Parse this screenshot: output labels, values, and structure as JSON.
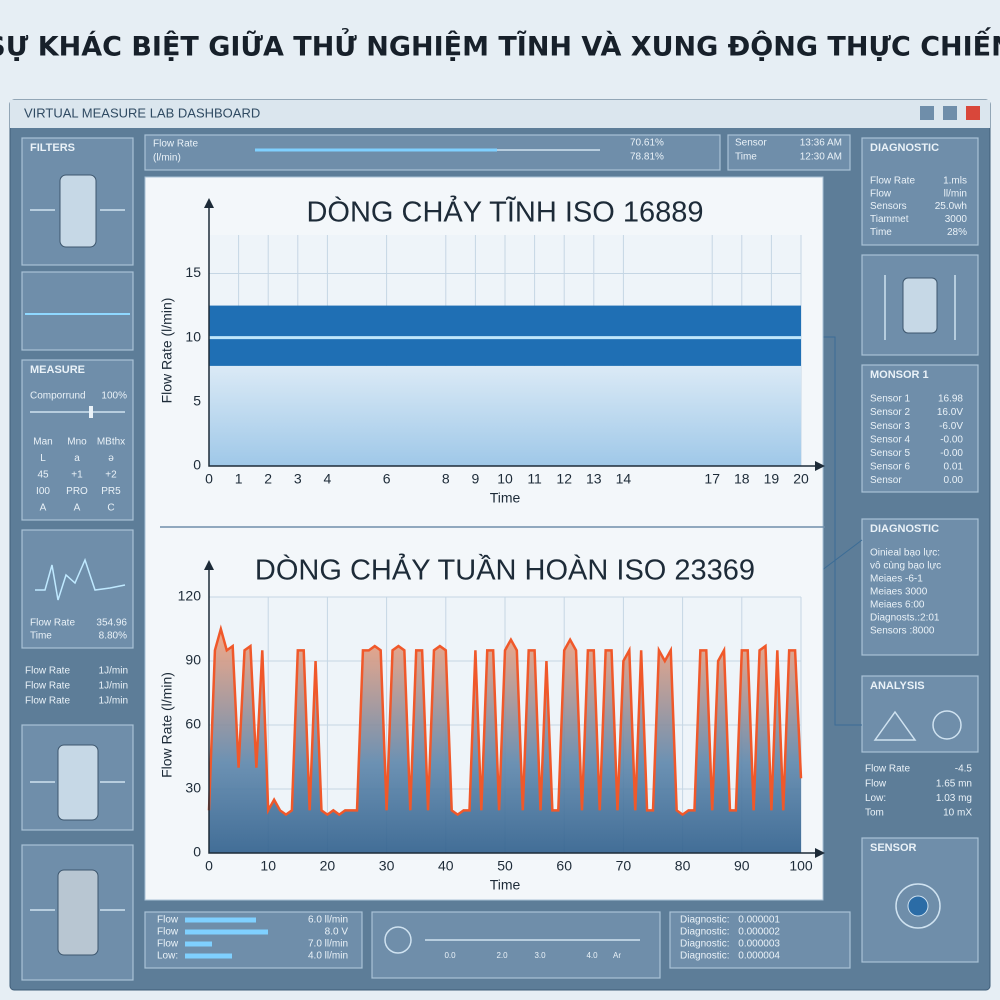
{
  "title": "SỰ KHÁC BIỆT GIỮA THỬ NGHIỆM TĨNH VÀ XUNG ĐỘNG THỰC CHIẾN",
  "window_title": "VIRTUAL MEASURE LAB DASHBOARD",
  "top_bar": {
    "label": [
      "Flow Rate",
      "(l/min)"
    ],
    "readings": [
      "70.61%",
      "78.81%"
    ],
    "sensor_rows": [
      [
        "Sensor",
        "13:36 AM"
      ],
      [
        "Time",
        "12:30 AM"
      ]
    ]
  },
  "left": {
    "filters_title": "FILTERS",
    "measure": {
      "title": "MEASURE",
      "slider_label": "Comporrund",
      "slider_value": "100%",
      "grid": [
        [
          "Man",
          "Mno",
          "MBthx"
        ],
        [
          "L",
          "a",
          "ə"
        ],
        [
          "45",
          "+1",
          "+2"
        ],
        [
          "I00",
          "PRO",
          "PR5"
        ],
        [
          "A",
          "A",
          "C"
        ]
      ]
    },
    "wave_rows": [
      [
        "Flow Rate",
        "354.96"
      ],
      [
        "Time",
        "8.80%"
      ]
    ],
    "list_rows": [
      [
        "Flow Rate",
        "1J/min"
      ],
      [
        "Flow Rate",
        "1J/min"
      ],
      [
        "Flow Rate",
        "1J/min"
      ]
    ]
  },
  "right": {
    "diagnostic": {
      "title": "DIAGNOSTIC",
      "rows": [
        [
          "Flow Rate",
          "1.mls"
        ],
        [
          "Flow",
          "ll/min"
        ],
        [
          "Sensors",
          "25.0wh"
        ],
        [
          "Tiammet",
          "3000"
        ],
        [
          "Time",
          "28%"
        ]
      ]
    },
    "monsor": {
      "title": "MONSOR 1",
      "rows": [
        [
          "Sensor 1",
          "16.98"
        ],
        [
          "Sensor 2",
          "16.0V"
        ],
        [
          "Sensor 3",
          "-6.0V"
        ],
        [
          "Sensor 4",
          "-0.00"
        ],
        [
          "Sensor 5",
          "-0.00"
        ],
        [
          "Sensor 6",
          "0.01"
        ],
        [
          "Sensor",
          "0.00"
        ]
      ]
    },
    "diagnostic2": {
      "title": "DIAGNOSTIC",
      "lines": [
        "Oinieal bạo lực:",
        "vô cùng bạo lực",
        "Meiaes -6-1",
        "Meiaes 3000",
        "Meiaes 6:00",
        "Diagnosts.:2:01",
        "Sensors :8000"
      ]
    },
    "analysis_title": "ANALYSIS",
    "analysis_rows": [
      [
        "Flow Rate",
        "-4.5"
      ],
      [
        "Flow",
        "1.65 mn"
      ],
      [
        "Low:",
        "1.03 mg"
      ],
      [
        "Tom",
        "10 mX"
      ]
    ],
    "sensor_title": "SENSOR"
  },
  "bottom": {
    "flow_rows": [
      [
        "Flow",
        "6.0 ll/min"
      ],
      [
        "Flow",
        "8.0 V"
      ],
      [
        "Flow",
        "7.0 ll/min"
      ],
      [
        "Low:",
        "4.0 ll/min"
      ]
    ],
    "scale_labels": [
      "0.0",
      "2.0",
      "3.0",
      "4.0",
      "Ar"
    ],
    "diag_rows": [
      [
        "Diagnostic:",
        "0.000001"
      ],
      [
        "Diagnostic:",
        "0.000002"
      ],
      [
        "Diagnostic:",
        "0.000003"
      ],
      [
        "Diagnostic:",
        "0.000004"
      ]
    ]
  },
  "chart_data": [
    {
      "type": "line",
      "title": "DÒNG CHẢY TĨNH ISO 16889",
      "x_label": "Time",
      "y_label": "Flow Rate (l/min)",
      "x": [
        0,
        1,
        2,
        3,
        4,
        5,
        6,
        7,
        8,
        9,
        10,
        11,
        12,
        13,
        14,
        15,
        16,
        17,
        18,
        19,
        20
      ],
      "values": [
        10,
        10,
        10,
        10,
        10,
        10,
        10,
        10,
        10,
        10,
        10,
        10,
        10,
        10,
        10,
        10,
        10,
        10,
        10,
        10,
        10
      ],
      "band": {
        "lower": 7.8,
        "upper": 12.5,
        "color": "#1f6fb4"
      },
      "color": "#bfe6fb",
      "grid": true,
      "xlim": [
        0,
        20
      ],
      "xticks": [
        0,
        1,
        2,
        3,
        4,
        6,
        8,
        9,
        10,
        11,
        12,
        13,
        14,
        17,
        18,
        19,
        20
      ],
      "ylim": [
        0,
        18
      ],
      "yticks": [
        0,
        5,
        10,
        15
      ]
    },
    {
      "type": "line",
      "title": "DÒNG CHẢY TUẦN HOÀN ISO 23369",
      "x_label": "Time",
      "y_label": "Flow Rate (l/min)",
      "x": [
        0,
        1,
        2,
        3,
        4,
        5,
        6,
        7,
        8,
        9,
        10,
        11,
        12,
        13,
        14,
        15,
        16,
        17,
        18,
        19,
        20,
        21,
        22,
        23,
        24,
        25,
        26,
        27,
        28,
        29,
        30,
        31,
        32,
        33,
        34,
        35,
        36,
        37,
        38,
        39,
        40,
        41,
        42,
        43,
        44,
        45,
        46,
        47,
        48,
        49,
        50,
        51,
        52,
        53,
        54,
        55,
        56,
        57,
        58,
        59,
        60,
        61,
        62,
        63,
        64,
        65,
        66,
        67,
        68,
        69,
        70,
        71,
        72,
        73,
        74,
        75,
        76,
        77,
        78,
        79,
        80,
        81,
        82,
        83,
        84,
        85,
        86,
        87,
        88,
        89,
        90,
        91,
        92,
        93,
        94,
        95,
        96,
        97,
        98,
        99,
        100
      ],
      "values": [
        20,
        95,
        105,
        95,
        97,
        40,
        95,
        97,
        40,
        95,
        20,
        25,
        20,
        18,
        20,
        95,
        95,
        20,
        90,
        20,
        18,
        20,
        18,
        20,
        20,
        20,
        95,
        95,
        97,
        95,
        20,
        95,
        97,
        95,
        20,
        95,
        95,
        20,
        95,
        97,
        95,
        20,
        18,
        20,
        20,
        95,
        20,
        95,
        95,
        20,
        95,
        100,
        95,
        20,
        95,
        95,
        20,
        90,
        20,
        20,
        95,
        100,
        95,
        20,
        95,
        95,
        20,
        95,
        95,
        20,
        90,
        95,
        20,
        95,
        20,
        20,
        95,
        90,
        95,
        20,
        18,
        20,
        20,
        95,
        95,
        20,
        90,
        95,
        20,
        20,
        95,
        95,
        20,
        95,
        97,
        20,
        95,
        20,
        95,
        95,
        35
      ],
      "color": "#f0582a",
      "grid": true,
      "xlim": [
        0,
        100
      ],
      "xticks": [
        0,
        10,
        20,
        30,
        40,
        50,
        60,
        70,
        80,
        90,
        100
      ],
      "ylim": [
        0,
        120
      ],
      "yticks": [
        0,
        30,
        60,
        90,
        120
      ]
    }
  ]
}
